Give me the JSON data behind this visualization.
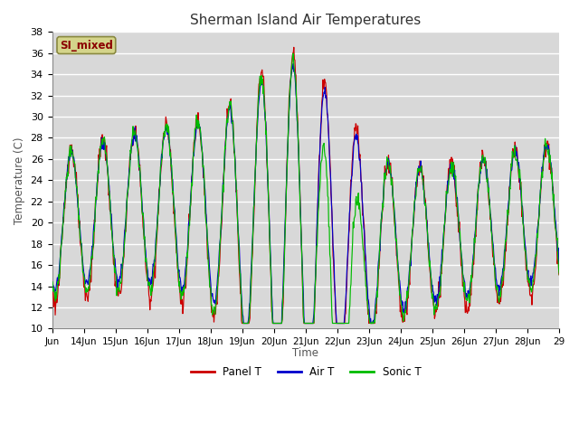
{
  "title": "Sherman Island Air Temperatures",
  "xlabel": "Time",
  "ylabel": "Temperature (C)",
  "ylim": [
    10,
    38
  ],
  "yticks": [
    10,
    12,
    14,
    16,
    18,
    20,
    22,
    24,
    26,
    28,
    30,
    32,
    34,
    36,
    38
  ],
  "label_box": "SI_mixed",
  "label_box_facecolor": "#d4d48a",
  "label_box_edgecolor": "#888840",
  "label_box_text_color": "#8B0000",
  "legend_labels": [
    "Panel T",
    "Air T",
    "Sonic T"
  ],
  "panel_color": "#cc0000",
  "air_color": "#0000cc",
  "sonic_color": "#00bb00",
  "fig_bg_color": "#ffffff",
  "plot_bg_color": "#d8d8d8",
  "grid_color": "#ffffff",
  "x_start": 13.0,
  "x_end": 29.0,
  "xtick_positions": [
    13,
    14,
    15,
    16,
    17,
    18,
    19,
    20,
    21,
    22,
    23,
    24,
    25,
    26,
    27,
    28,
    29
  ],
  "xtick_labels": [
    "Jun",
    "14Jun",
    "15Jun",
    "16Jun",
    "17Jun",
    "18Jun",
    "19Jun",
    "20Jun",
    "21Jun",
    "22Jun",
    "23Jun",
    "24Jun",
    "25Jun",
    "26Jun",
    "27Jun",
    "28Jun",
    "29"
  ]
}
